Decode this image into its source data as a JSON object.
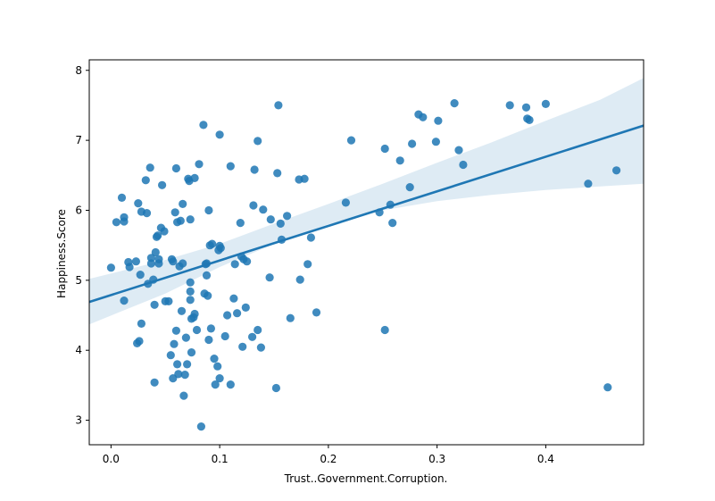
{
  "chart_data": {
    "type": "scatter",
    "title": "",
    "xlabel": "Trust..Government.Corruption.",
    "ylabel": "Happiness.Score",
    "xlim": [
      -0.02,
      0.49
    ],
    "ylim": [
      2.65,
      8.15
    ],
    "xticks": [
      0.0,
      0.1,
      0.2,
      0.3,
      0.4
    ],
    "xtick_labels": [
      "0.0",
      "0.1",
      "0.2",
      "0.3",
      "0.4"
    ],
    "yticks": [
      3,
      4,
      5,
      6,
      7,
      8
    ],
    "ytick_labels": [
      "3",
      "4",
      "5",
      "6",
      "7",
      "8"
    ],
    "grid": false,
    "colors": {
      "points": "#1f77b4",
      "line": "#1f77b4",
      "band": "#1f77b4"
    },
    "regression": {
      "x": [
        -0.02,
        0.49
      ],
      "y": [
        4.69,
        7.21
      ],
      "ci_lower": [
        4.37,
        6.38
      ],
      "ci_upper": [
        5.02,
        7.89
      ],
      "ci_x": [
        -0.02,
        0.05,
        0.1,
        0.15,
        0.2,
        0.25,
        0.3,
        0.35,
        0.4,
        0.45,
        0.49
      ],
      "ci_lower_y": [
        4.37,
        4.81,
        5.19,
        5.52,
        5.8,
        6.0,
        6.13,
        6.22,
        6.29,
        6.34,
        6.38
      ],
      "ci_upper_y": [
        5.02,
        5.29,
        5.52,
        5.81,
        6.09,
        6.38,
        6.68,
        6.97,
        7.28,
        7.58,
        7.89
      ]
    },
    "points": [
      [
        0.0,
        5.18
      ],
      [
        0.005,
        5.83
      ],
      [
        0.01,
        6.18
      ],
      [
        0.012,
        5.84
      ],
      [
        0.012,
        5.9
      ],
      [
        0.012,
        4.71
      ],
      [
        0.016,
        5.26
      ],
      [
        0.017,
        5.19
      ],
      [
        0.023,
        5.27
      ],
      [
        0.024,
        4.1
      ],
      [
        0.025,
        6.1
      ],
      [
        0.026,
        4.13
      ],
      [
        0.027,
        5.08
      ],
      [
        0.028,
        5.98
      ],
      [
        0.028,
        4.38
      ],
      [
        0.032,
        6.43
      ],
      [
        0.033,
        5.96
      ],
      [
        0.034,
        4.95
      ],
      [
        0.036,
        6.61
      ],
      [
        0.037,
        5.32
      ],
      [
        0.037,
        5.24
      ],
      [
        0.039,
        5.01
      ],
      [
        0.04,
        4.65
      ],
      [
        0.04,
        3.54
      ],
      [
        0.041,
        5.4
      ],
      [
        0.042,
        5.62
      ],
      [
        0.043,
        5.64
      ],
      [
        0.044,
        5.3
      ],
      [
        0.044,
        5.24
      ],
      [
        0.046,
        5.75
      ],
      [
        0.047,
        6.36
      ],
      [
        0.049,
        5.7
      ],
      [
        0.05,
        4.7
      ],
      [
        0.053,
        4.7
      ],
      [
        0.055,
        3.93
      ],
      [
        0.056,
        5.3
      ],
      [
        0.057,
        5.27
      ],
      [
        0.057,
        3.6
      ],
      [
        0.058,
        4.09
      ],
      [
        0.059,
        5.97
      ],
      [
        0.06,
        6.6
      ],
      [
        0.06,
        4.28
      ],
      [
        0.061,
        3.8
      ],
      [
        0.061,
        5.83
      ],
      [
        0.062,
        3.66
      ],
      [
        0.063,
        5.2
      ],
      [
        0.064,
        5.85
      ],
      [
        0.065,
        4.56
      ],
      [
        0.066,
        6.09
      ],
      [
        0.066,
        5.24
      ],
      [
        0.067,
        3.35
      ],
      [
        0.068,
        3.65
      ],
      [
        0.069,
        4.18
      ],
      [
        0.07,
        3.8
      ],
      [
        0.071,
        6.45
      ],
      [
        0.072,
        6.42
      ],
      [
        0.073,
        5.87
      ],
      [
        0.073,
        4.97
      ],
      [
        0.073,
        4.84
      ],
      [
        0.073,
        4.72
      ],
      [
        0.074,
        4.45
      ],
      [
        0.074,
        3.97
      ],
      [
        0.076,
        4.47
      ],
      [
        0.077,
        4.52
      ],
      [
        0.077,
        6.46
      ],
      [
        0.079,
        4.29
      ],
      [
        0.081,
        6.66
      ],
      [
        0.083,
        2.91
      ],
      [
        0.085,
        7.22
      ],
      [
        0.086,
        4.81
      ],
      [
        0.087,
        5.23
      ],
      [
        0.088,
        5.24
      ],
      [
        0.088,
        5.07
      ],
      [
        0.089,
        4.78
      ],
      [
        0.09,
        6.0
      ],
      [
        0.09,
        4.15
      ],
      [
        0.091,
        5.5
      ],
      [
        0.092,
        4.31
      ],
      [
        0.093,
        5.52
      ],
      [
        0.095,
        3.88
      ],
      [
        0.096,
        3.51
      ],
      [
        0.098,
        3.77
      ],
      [
        0.099,
        5.43
      ],
      [
        0.1,
        5.49
      ],
      [
        0.1,
        3.6
      ],
      [
        0.1,
        7.08
      ],
      [
        0.101,
        5.46
      ],
      [
        0.105,
        4.2
      ],
      [
        0.107,
        4.5
      ],
      [
        0.11,
        6.63
      ],
      [
        0.11,
        3.51
      ],
      [
        0.113,
        4.74
      ],
      [
        0.114,
        5.23
      ],
      [
        0.116,
        4.53
      ],
      [
        0.119,
        5.82
      ],
      [
        0.12,
        5.34
      ],
      [
        0.121,
        4.05
      ],
      [
        0.122,
        5.3
      ],
      [
        0.124,
        4.61
      ],
      [
        0.125,
        5.27
      ],
      [
        0.13,
        4.19
      ],
      [
        0.131,
        6.07
      ],
      [
        0.132,
        6.58
      ],
      [
        0.135,
        4.29
      ],
      [
        0.135,
        6.99
      ],
      [
        0.138,
        4.04
      ],
      [
        0.14,
        6.01
      ],
      [
        0.146,
        5.04
      ],
      [
        0.147,
        5.87
      ],
      [
        0.152,
        3.46
      ],
      [
        0.153,
        6.53
      ],
      [
        0.154,
        7.5
      ],
      [
        0.156,
        5.81
      ],
      [
        0.157,
        5.58
      ],
      [
        0.162,
        5.92
      ],
      [
        0.165,
        4.46
      ],
      [
        0.173,
        6.44
      ],
      [
        0.174,
        5.01
      ],
      [
        0.178,
        6.45
      ],
      [
        0.181,
        5.23
      ],
      [
        0.184,
        5.61
      ],
      [
        0.189,
        4.54
      ],
      [
        0.216,
        6.11
      ],
      [
        0.221,
        7.0
      ],
      [
        0.247,
        5.97
      ],
      [
        0.252,
        6.88
      ],
      [
        0.252,
        4.29
      ],
      [
        0.257,
        6.08
      ],
      [
        0.259,
        5.82
      ],
      [
        0.266,
        6.71
      ],
      [
        0.275,
        6.33
      ],
      [
        0.277,
        6.95
      ],
      [
        0.283,
        7.37
      ],
      [
        0.287,
        7.33
      ],
      [
        0.299,
        6.98
      ],
      [
        0.301,
        7.28
      ],
      [
        0.316,
        7.53
      ],
      [
        0.32,
        6.86
      ],
      [
        0.324,
        6.65
      ],
      [
        0.367,
        7.5
      ],
      [
        0.382,
        7.47
      ],
      [
        0.383,
        7.31
      ],
      [
        0.385,
        7.29
      ],
      [
        0.4,
        7.52
      ],
      [
        0.439,
        6.38
      ],
      [
        0.457,
        3.47
      ],
      [
        0.465,
        6.57
      ]
    ]
  }
}
